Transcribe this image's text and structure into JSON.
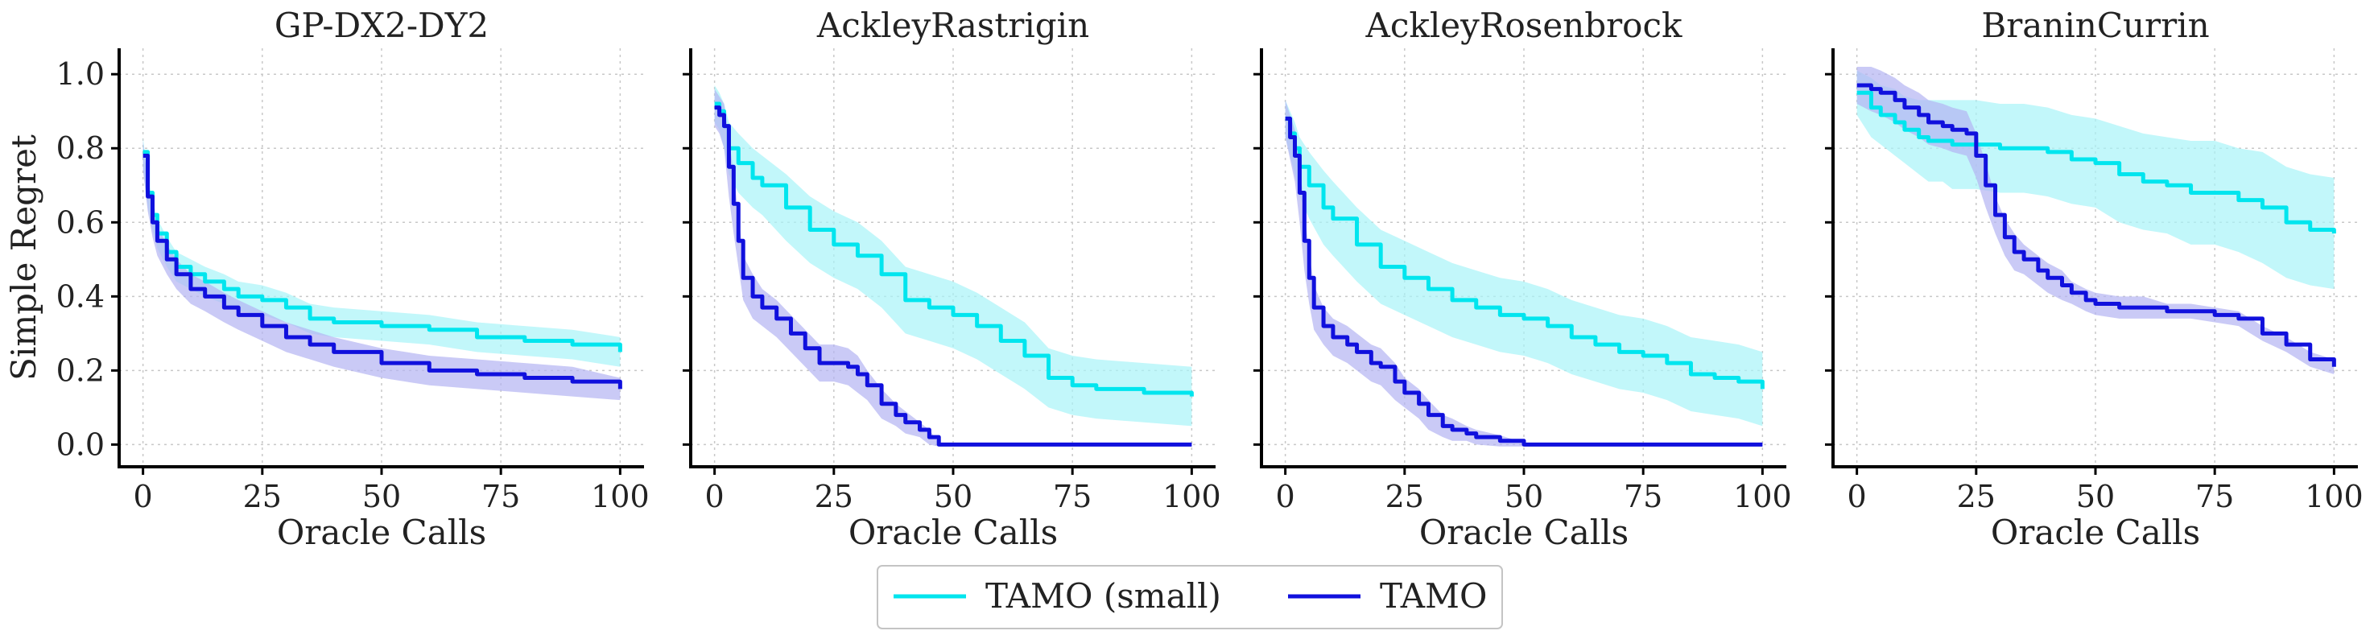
{
  "chart_data": [
    {
      "type": "line",
      "title": "GP-DX2-DY2",
      "xlabel": "Oracle Calls",
      "ylabel": "Simple Regret",
      "xlim": [
        -5,
        105
      ],
      "ylim": [
        -0.06,
        1.07
      ],
      "xticks": [
        0,
        25,
        50,
        75,
        100
      ],
      "yticks": [
        0.0,
        0.2,
        0.4,
        0.6,
        0.8,
        1.0
      ],
      "grid": true,
      "series": [
        {
          "name": "TAMO (small)",
          "x": [
            0,
            1,
            2,
            3,
            5,
            7,
            10,
            13,
            17,
            20,
            25,
            30,
            35,
            40,
            50,
            60,
            70,
            80,
            90,
            100
          ],
          "mean": [
            0.79,
            0.68,
            0.62,
            0.57,
            0.52,
            0.48,
            0.46,
            0.44,
            0.42,
            0.4,
            0.39,
            0.37,
            0.34,
            0.33,
            0.32,
            0.31,
            0.29,
            0.28,
            0.27,
            0.25
          ],
          "band": [
            0.04,
            0.04,
            0.04,
            0.04,
            0.04,
            0.04,
            0.04,
            0.04,
            0.04,
            0.04,
            0.04,
            0.04,
            0.04,
            0.04,
            0.04,
            0.04,
            0.04,
            0.04,
            0.04,
            0.04
          ]
        },
        {
          "name": "TAMO",
          "x": [
            0,
            1,
            2,
            3,
            5,
            7,
            10,
            13,
            17,
            20,
            25,
            30,
            35,
            40,
            50,
            60,
            70,
            80,
            90,
            100
          ],
          "mean": [
            0.78,
            0.67,
            0.6,
            0.55,
            0.5,
            0.46,
            0.42,
            0.4,
            0.37,
            0.35,
            0.32,
            0.29,
            0.27,
            0.25,
            0.22,
            0.2,
            0.19,
            0.18,
            0.17,
            0.15
          ],
          "band": [
            0.04,
            0.04,
            0.04,
            0.04,
            0.04,
            0.04,
            0.04,
            0.04,
            0.04,
            0.04,
            0.04,
            0.04,
            0.04,
            0.04,
            0.04,
            0.04,
            0.04,
            0.04,
            0.04,
            0.03
          ]
        }
      ]
    },
    {
      "type": "line",
      "title": "AckleyRastrigin",
      "xlabel": "Oracle Calls",
      "ylabel": "",
      "xlim": [
        -5,
        105
      ],
      "ylim": [
        -0.06,
        1.07
      ],
      "xticks": [
        0,
        25,
        50,
        75,
        100
      ],
      "yticks": [
        0.0,
        0.2,
        0.4,
        0.6,
        0.8,
        1.0
      ],
      "grid": true,
      "series": [
        {
          "name": "TAMO (small)",
          "x": [
            0,
            1,
            2,
            3,
            5,
            8,
            10,
            15,
            20,
            25,
            30,
            35,
            40,
            45,
            50,
            55,
            60,
            65,
            70,
            75,
            80,
            90,
            100
          ],
          "mean": [
            0.92,
            0.9,
            0.86,
            0.8,
            0.76,
            0.72,
            0.7,
            0.64,
            0.58,
            0.54,
            0.51,
            0.46,
            0.39,
            0.37,
            0.35,
            0.32,
            0.28,
            0.24,
            0.18,
            0.16,
            0.15,
            0.14,
            0.13
          ],
          "band": [
            0.05,
            0.05,
            0.06,
            0.07,
            0.08,
            0.08,
            0.08,
            0.09,
            0.09,
            0.09,
            0.09,
            0.09,
            0.09,
            0.09,
            0.09,
            0.09,
            0.09,
            0.09,
            0.08,
            0.08,
            0.08,
            0.08,
            0.08
          ]
        },
        {
          "name": "TAMO",
          "x": [
            0,
            1,
            2,
            3,
            4,
            5,
            6,
            8,
            10,
            13,
            16,
            19,
            22,
            25,
            28,
            30,
            32,
            35,
            38,
            40,
            43,
            45,
            47,
            50,
            60,
            70,
            80,
            90,
            100
          ],
          "mean": [
            0.91,
            0.89,
            0.86,
            0.75,
            0.65,
            0.55,
            0.45,
            0.4,
            0.37,
            0.34,
            0.3,
            0.26,
            0.22,
            0.22,
            0.21,
            0.19,
            0.16,
            0.11,
            0.08,
            0.06,
            0.04,
            0.02,
            0.0,
            0.0,
            0.0,
            0.0,
            0.0,
            0.0,
            0.0
          ],
          "band": [
            0.05,
            0.05,
            0.06,
            0.08,
            0.08,
            0.07,
            0.06,
            0.06,
            0.05,
            0.05,
            0.05,
            0.05,
            0.05,
            0.05,
            0.05,
            0.05,
            0.04,
            0.04,
            0.03,
            0.03,
            0.02,
            0.02,
            0.005,
            0.005,
            0.005,
            0.005,
            0.005,
            0.005,
            0.005
          ]
        }
      ]
    },
    {
      "type": "line",
      "title": "AckleyRosenbrock",
      "xlabel": "Oracle Calls",
      "ylabel": "",
      "xlim": [
        -5,
        105
      ],
      "ylim": [
        -0.06,
        1.07
      ],
      "xticks": [
        0,
        25,
        50,
        75,
        100
      ],
      "yticks": [
        0.0,
        0.2,
        0.4,
        0.6,
        0.8,
        1.0
      ],
      "grid": true,
      "series": [
        {
          "name": "TAMO (small)",
          "x": [
            0,
            1,
            2,
            3,
            5,
            8,
            10,
            15,
            20,
            25,
            30,
            35,
            40,
            45,
            50,
            55,
            60,
            65,
            70,
            75,
            80,
            85,
            90,
            95,
            100
          ],
          "mean": [
            0.88,
            0.84,
            0.8,
            0.75,
            0.7,
            0.64,
            0.61,
            0.54,
            0.48,
            0.45,
            0.42,
            0.39,
            0.37,
            0.35,
            0.34,
            0.32,
            0.29,
            0.27,
            0.25,
            0.24,
            0.22,
            0.19,
            0.18,
            0.17,
            0.15
          ],
          "band": [
            0.05,
            0.06,
            0.07,
            0.08,
            0.09,
            0.1,
            0.1,
            0.1,
            0.1,
            0.1,
            0.1,
            0.1,
            0.1,
            0.1,
            0.1,
            0.1,
            0.1,
            0.1,
            0.1,
            0.1,
            0.1,
            0.1,
            0.1,
            0.1,
            0.1
          ]
        },
        {
          "name": "TAMO",
          "x": [
            0,
            1,
            2,
            3,
            4,
            5,
            6,
            8,
            10,
            13,
            15,
            18,
            20,
            23,
            25,
            28,
            30,
            33,
            35,
            38,
            40,
            45,
            50,
            60,
            70,
            80,
            90,
            100
          ],
          "mean": [
            0.88,
            0.83,
            0.78,
            0.68,
            0.55,
            0.45,
            0.37,
            0.32,
            0.29,
            0.27,
            0.25,
            0.22,
            0.21,
            0.17,
            0.14,
            0.11,
            0.08,
            0.05,
            0.04,
            0.03,
            0.02,
            0.01,
            0.0,
            0.0,
            0.0,
            0.0,
            0.0,
            0.0
          ],
          "band": [
            0.05,
            0.06,
            0.07,
            0.08,
            0.08,
            0.07,
            0.06,
            0.05,
            0.05,
            0.05,
            0.05,
            0.05,
            0.05,
            0.05,
            0.04,
            0.04,
            0.04,
            0.03,
            0.03,
            0.02,
            0.02,
            0.015,
            0.005,
            0.005,
            0.005,
            0.005,
            0.005,
            0.005
          ]
        }
      ]
    },
    {
      "type": "line",
      "title": "BraninCurrin",
      "xlabel": "Oracle Calls",
      "ylabel": "",
      "xlim": [
        -5,
        105
      ],
      "ylim": [
        -0.06,
        1.07
      ],
      "xticks": [
        0,
        25,
        50,
        75,
        100
      ],
      "yticks": [
        0.0,
        0.2,
        0.4,
        0.6,
        0.8,
        1.0
      ],
      "grid": true,
      "series": [
        {
          "name": "TAMO (small)",
          "x": [
            0,
            3,
            5,
            8,
            10,
            13,
            15,
            18,
            20,
            25,
            30,
            35,
            40,
            45,
            50,
            55,
            60,
            65,
            70,
            75,
            80,
            85,
            90,
            95,
            100
          ],
          "mean": [
            0.95,
            0.91,
            0.89,
            0.87,
            0.85,
            0.83,
            0.82,
            0.82,
            0.81,
            0.81,
            0.8,
            0.8,
            0.79,
            0.77,
            0.76,
            0.73,
            0.71,
            0.7,
            0.68,
            0.68,
            0.66,
            0.64,
            0.6,
            0.58,
            0.57
          ],
          "band": [
            0.06,
            0.08,
            0.08,
            0.09,
            0.09,
            0.1,
            0.11,
            0.11,
            0.12,
            0.12,
            0.12,
            0.12,
            0.12,
            0.12,
            0.12,
            0.13,
            0.13,
            0.13,
            0.14,
            0.14,
            0.14,
            0.15,
            0.15,
            0.15,
            0.15
          ]
        },
        {
          "name": "TAMO",
          "x": [
            0,
            3,
            5,
            8,
            10,
            13,
            15,
            18,
            20,
            23,
            25,
            27,
            29,
            31,
            33,
            35,
            38,
            40,
            43,
            45,
            48,
            50,
            55,
            60,
            65,
            70,
            75,
            80,
            85,
            90,
            95,
            100
          ],
          "mean": [
            0.97,
            0.96,
            0.95,
            0.93,
            0.91,
            0.89,
            0.87,
            0.86,
            0.85,
            0.84,
            0.78,
            0.7,
            0.62,
            0.56,
            0.52,
            0.5,
            0.47,
            0.45,
            0.43,
            0.41,
            0.39,
            0.38,
            0.37,
            0.37,
            0.36,
            0.36,
            0.35,
            0.34,
            0.3,
            0.27,
            0.23,
            0.21
          ],
          "band": [
            0.05,
            0.06,
            0.06,
            0.06,
            0.06,
            0.06,
            0.06,
            0.06,
            0.06,
            0.06,
            0.06,
            0.06,
            0.05,
            0.05,
            0.05,
            0.04,
            0.04,
            0.04,
            0.04,
            0.03,
            0.03,
            0.03,
            0.03,
            0.03,
            0.02,
            0.02,
            0.02,
            0.02,
            0.02,
            0.02,
            0.02,
            0.02
          ]
        }
      ]
    }
  ],
  "legend": {
    "position": "bottom-center",
    "entries": [
      {
        "label": "TAMO (small)",
        "color": "#00e5ee"
      },
      {
        "label": "TAMO",
        "color": "#1010dd"
      }
    ]
  },
  "colors": {
    "small_line": "#00e5ee",
    "small_band": "#a8f4f8",
    "full_line": "#1010dd",
    "full_band": "#b3b3f2"
  }
}
